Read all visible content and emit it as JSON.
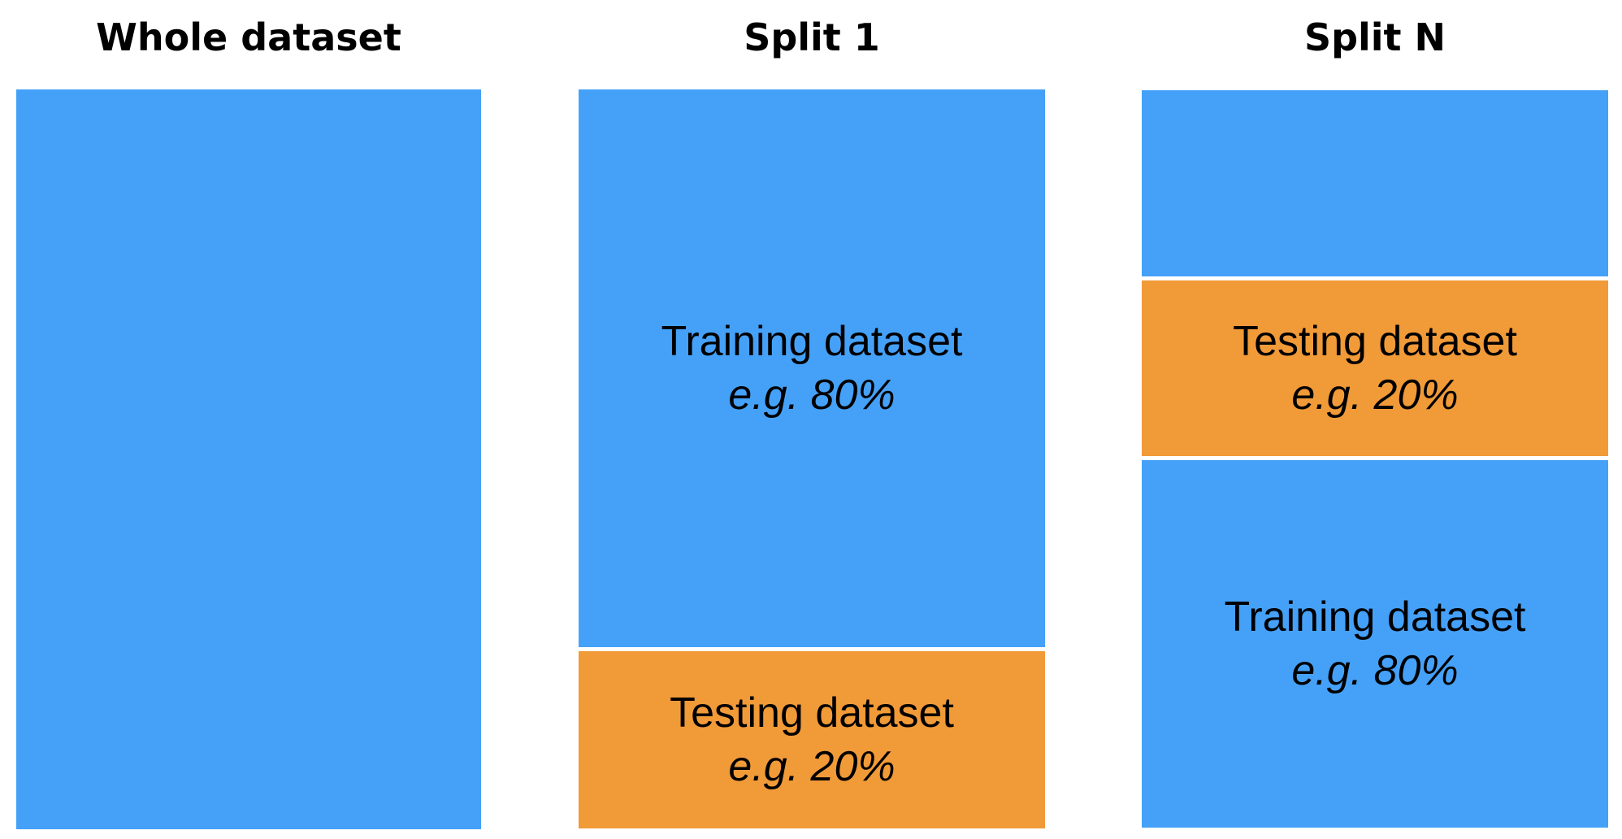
{
  "colors": {
    "training": "#45a1f8",
    "testing": "#f19a38"
  },
  "columns": [
    {
      "title": "Whole dataset",
      "segments": [
        {
          "kind": "whole",
          "name": "",
          "pct": ""
        }
      ]
    },
    {
      "title": "Split 1",
      "segments": [
        {
          "kind": "training",
          "name": "Training dataset",
          "pct": "e.g. 80%"
        },
        {
          "kind": "testing",
          "name": "Testing dataset",
          "pct": "e.g. 20%"
        }
      ]
    },
    {
      "title": "Split N",
      "segments": [
        {
          "kind": "training",
          "name": "",
          "pct": ""
        },
        {
          "kind": "testing",
          "name": "Testing dataset",
          "pct": "e.g. 20%"
        },
        {
          "kind": "training",
          "name": "Training dataset",
          "pct": "e.g. 80%"
        }
      ]
    }
  ]
}
